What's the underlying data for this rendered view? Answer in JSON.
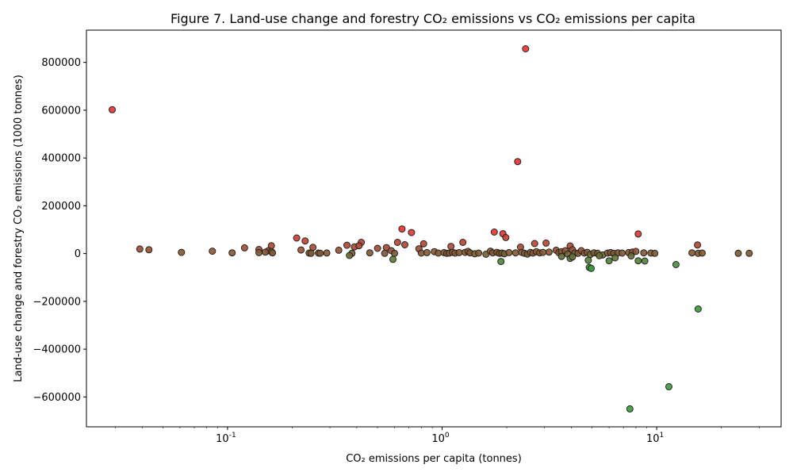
{
  "chart_data": {
    "type": "scatter",
    "title": "Figure 7. Land-use change and forestry CO₂ emissions vs CO₂ emissions per capita",
    "xlabel": "CO₂ emissions per capita (tonnes)",
    "ylabel": "Land-use change and forestry CO₂ emissions (1000 tonnes)",
    "xscale": "log",
    "xlim": [
      0.022,
      38
    ],
    "ylim": [
      -725000,
      935000
    ],
    "x_ticks": [
      {
        "value": 0.1,
        "label": "10^-1"
      },
      {
        "value": 1,
        "label": "10^0"
      },
      {
        "value": 10,
        "label": "10^1"
      }
    ],
    "y_ticks": [
      -600000,
      -400000,
      -200000,
      0,
      200000,
      400000,
      600000,
      800000
    ],
    "grid": false,
    "legend": "none",
    "color_scale": {
      "negative": "#3a9a3a",
      "zero": "#7a5a30",
      "positive": "#e83030"
    },
    "points": [
      [
        0.029,
        602000
      ],
      [
        2.45,
        857000
      ],
      [
        2.25,
        385000
      ],
      [
        0.65,
        103000
      ],
      [
        0.72,
        88000
      ],
      [
        1.75,
        90000
      ],
      [
        1.92,
        83000
      ],
      [
        1.98,
        67000
      ],
      [
        8.2,
        82000
      ],
      [
        0.21,
        65000
      ],
      [
        0.23,
        53000
      ],
      [
        0.42,
        47000
      ],
      [
        0.62,
        47000
      ],
      [
        1.25,
        47000
      ],
      [
        2.7,
        42000
      ],
      [
        3.05,
        44000
      ],
      [
        15.5,
        36000
      ],
      [
        0.67,
        37000
      ],
      [
        0.39,
        28000
      ],
      [
        0.36,
        35000
      ],
      [
        0.41,
        33000
      ],
      [
        0.16,
        33000
      ],
      [
        0.82,
        41000
      ],
      [
        1.1,
        30000
      ],
      [
        2.32,
        27000
      ],
      [
        3.95,
        32000
      ],
      [
        0.25,
        26000
      ],
      [
        0.12,
        24000
      ],
      [
        0.5,
        22000
      ],
      [
        0.55,
        25000
      ],
      [
        0.78,
        20000
      ],
      [
        0.039,
        19000
      ],
      [
        0.043,
        16000
      ],
      [
        0.14,
        17000
      ],
      [
        0.22,
        15000
      ],
      [
        0.33,
        14000
      ],
      [
        0.085,
        10000
      ],
      [
        0.155,
        12000
      ],
      [
        0.16,
        8000
      ],
      [
        0.061,
        5000
      ],
      [
        0.105,
        3000
      ],
      [
        0.14,
        4000
      ],
      [
        0.15,
        6000
      ],
      [
        0.162,
        3000
      ],
      [
        0.24,
        2000
      ],
      [
        0.245,
        1000
      ],
      [
        0.265,
        2000
      ],
      [
        0.27,
        1500
      ],
      [
        0.29,
        2500
      ],
      [
        0.38,
        1000
      ],
      [
        0.46,
        3000
      ],
      [
        0.54,
        1000
      ],
      [
        0.58,
        12000
      ],
      [
        0.6,
        1000
      ],
      [
        0.8,
        2000
      ],
      [
        0.85,
        4000
      ],
      [
        0.92,
        8000
      ],
      [
        0.96,
        2000
      ],
      [
        1.02,
        4000
      ],
      [
        1.05,
        1000
      ],
      [
        1.08,
        2000
      ],
      [
        1.12,
        5000
      ],
      [
        1.15,
        2000
      ],
      [
        1.2,
        4000
      ],
      [
        1.28,
        5000
      ],
      [
        1.32,
        9000
      ],
      [
        1.35,
        3000
      ],
      [
        1.42,
        -1000
      ],
      [
        1.48,
        2000
      ],
      [
        1.6,
        -3000
      ],
      [
        1.68,
        10000
      ],
      [
        1.72,
        3000
      ],
      [
        1.8,
        5000
      ],
      [
        1.85,
        1000
      ],
      [
        1.9,
        2000
      ],
      [
        1.95,
        -1000
      ],
      [
        2.05,
        4000
      ],
      [
        2.2,
        3000
      ],
      [
        2.35,
        5000
      ],
      [
        2.42,
        1000
      ],
      [
        2.5,
        -2000
      ],
      [
        2.58,
        5000
      ],
      [
        2.65,
        2000
      ],
      [
        2.75,
        8000
      ],
      [
        2.85,
        3000
      ],
      [
        2.95,
        5000
      ],
      [
        3.15,
        6000
      ],
      [
        3.4,
        14000
      ],
      [
        3.5,
        4000
      ],
      [
        3.6,
        8000
      ],
      [
        3.75,
        12000
      ],
      [
        3.85,
        -2000
      ],
      [
        4.05,
        16000
      ],
      [
        4.15,
        3000
      ],
      [
        4.3,
        1000
      ],
      [
        4.45,
        12000
      ],
      [
        4.6,
        2000
      ],
      [
        4.75,
        5000
      ],
      [
        4.9,
        -4000
      ],
      [
        5.1,
        3000
      ],
      [
        5.3,
        1000
      ],
      [
        5.6,
        -6000
      ],
      [
        5.9,
        2000
      ],
      [
        6.1,
        4000
      ],
      [
        6.3,
        1000
      ],
      [
        6.6,
        3000
      ],
      [
        6.9,
        2000
      ],
      [
        7.4,
        4000
      ],
      [
        7.7,
        6000
      ],
      [
        8.0,
        9000
      ],
      [
        8.7,
        3000
      ],
      [
        9.4,
        2000
      ],
      [
        9.8,
        1000
      ],
      [
        14.6,
        3000
      ],
      [
        15.6,
        1000
      ],
      [
        16.3,
        2000
      ],
      [
        24.0,
        1000
      ],
      [
        27.0,
        1000
      ],
      [
        0.37,
        -8000
      ],
      [
        0.59,
        -24000
      ],
      [
        1.88,
        -33000
      ],
      [
        3.6,
        -12000
      ],
      [
        3.95,
        -20000
      ],
      [
        4.05,
        -14000
      ],
      [
        4.8,
        -28000
      ],
      [
        4.85,
        -58000
      ],
      [
        4.95,
        -62000
      ],
      [
        5.4,
        -9000
      ],
      [
        6.0,
        -30000
      ],
      [
        6.4,
        -18000
      ],
      [
        7.6,
        -10000
      ],
      [
        8.2,
        -30000
      ],
      [
        8.8,
        -31000
      ],
      [
        12.3,
        -46000
      ],
      [
        15.6,
        -232000
      ],
      [
        11.4,
        -557000
      ],
      [
        7.5,
        -650000
      ]
    ]
  }
}
